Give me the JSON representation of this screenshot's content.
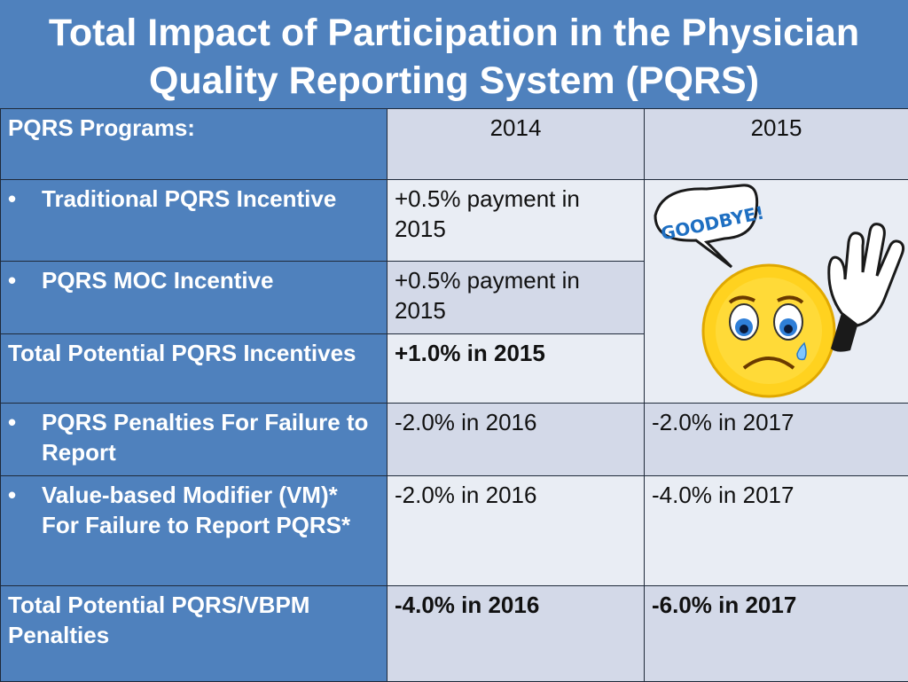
{
  "title": {
    "line1": "Total Impact of Participation in the Physician",
    "line2": "Quality Reporting System (PQRS)"
  },
  "header": {
    "label": "PQRS Programs:",
    "col1": "2014",
    "col2": "2015"
  },
  "rows": [
    {
      "bullet": "•",
      "label": "Traditional PQRS Incentive",
      "v2014": "+0.5% payment in 2015",
      "v2015": ""
    },
    {
      "bullet": "•",
      "label": "PQRS MOC Incentive",
      "v2014": "+0.5% payment in 2015",
      "v2015": ""
    },
    {
      "bullet": "",
      "label": "Total Potential PQRS Incentives",
      "v2014": "+1.0% in 2015",
      "v2015": ""
    },
    {
      "bullet": "•",
      "label": "PQRS Penalties For Failure to Report",
      "v2014": "-2.0% in 2016",
      "v2015": "-2.0% in 2017"
    },
    {
      "bullet": "•",
      "label": "Value-based Modifier (VM)* For Failure to Report PQRS*",
      "v2014": "-2.0% in 2016",
      "v2015": "-4.0% in 2017"
    },
    {
      "bullet": "",
      "label": "Total Potential PQRS/VBPM Penalties",
      "v2014": "-4.0% in 2016",
      "v2015": "-6.0% in 2017"
    }
  ],
  "illustration": {
    "icon": "goodbye-crying-face-icon",
    "speech_text": "GOODBYE!"
  },
  "colors": {
    "header_blue": "#4f81bd",
    "cell_light": "#e9edf4",
    "cell_mid": "#d3d9e8"
  }
}
